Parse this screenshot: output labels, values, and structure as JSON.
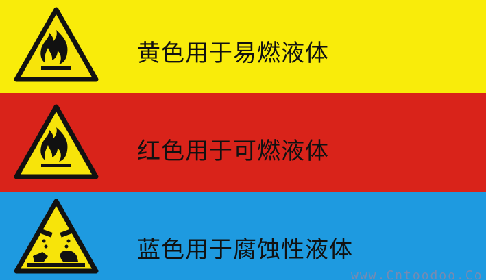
{
  "colors": {
    "yellow": "#f9ec0a",
    "red": "#d9231a",
    "blue": "#1e9ae0",
    "sign_fill": "#f7e40a",
    "sign_border": "#111111",
    "text": "#111111"
  },
  "bands": [
    {
      "caption": "黄色用于易燃液体",
      "icon": "flammable-warning-icon"
    },
    {
      "caption": "红色用于可燃液体",
      "icon": "flammable-warning-icon"
    },
    {
      "caption": "蓝色用于腐蚀性液体",
      "icon": "corrosive-warning-icon"
    }
  ],
  "watermark": "www.Cntoodoo.Co"
}
